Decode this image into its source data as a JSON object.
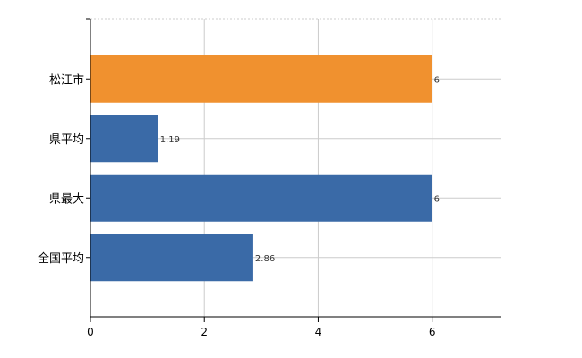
{
  "chart_data": {
    "type": "bar",
    "orientation": "horizontal",
    "categories": [
      "松江市",
      "県平均",
      "県最大",
      "全国平均"
    ],
    "values": [
      6,
      1.19,
      6,
      2.86
    ],
    "data_labels": [
      "6",
      "1.19",
      "6",
      "2.86"
    ],
    "colors": [
      "#f0912f",
      "#3a6aa7",
      "#3a6aa7",
      "#3a6aa7"
    ],
    "xlim": [
      0,
      7.2
    ],
    "xticks": [
      0,
      2,
      4,
      6
    ],
    "xtick_labels": [
      "0",
      "2",
      "4",
      "6"
    ],
    "grid": true,
    "title": "",
    "xlabel": "",
    "ylabel": ""
  }
}
